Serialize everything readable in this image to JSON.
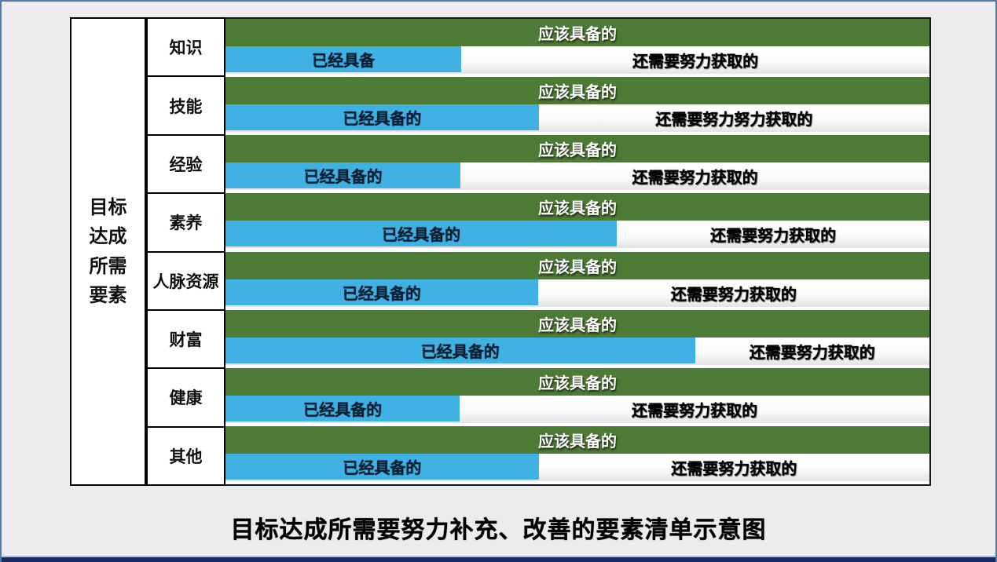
{
  "colors": {
    "green": "#4D7A34",
    "blue": "#3FB1E3",
    "frame_border": "#4F7CAC",
    "bottom_bar": "#182A5E",
    "bottom_line": "#AEBAD6",
    "background": "#ECECEC"
  },
  "header": {
    "title": "目标达成所需要素",
    "lines": [
      "目标",
      "达成",
      "所需",
      "要素"
    ]
  },
  "rows": [
    {
      "label": "知识",
      "should": "应该具备的",
      "have": "已经具备",
      "need": "还需要努力获取的",
      "blue_pct": 33.5
    },
    {
      "label": "技能",
      "should": "应该具备的",
      "have": "已经具备的",
      "need": "还需要努力努力获取的",
      "blue_pct": 44.5
    },
    {
      "label": "经验",
      "should": "应该具备的",
      "have": "已经具备的",
      "need": "还需要努力获取的",
      "blue_pct": 33.4
    },
    {
      "label": "素养",
      "should": "应该具备的",
      "have": "已经具备的",
      "need": "还需要努力获取的",
      "blue_pct": 55.6
    },
    {
      "label": "人脉资源",
      "should": "应该具备的",
      "have": "已经具备的",
      "need": "还需要努力获取的",
      "blue_pct": 44.4
    },
    {
      "label": "财富",
      "should": "应该具备的",
      "have": "已经具备的",
      "need": "还需要努力获取的",
      "blue_pct": 66.7
    },
    {
      "label": "健康",
      "should": "应该具备的",
      "have": "已经具备的",
      "need": "还需要努力获取的",
      "blue_pct": 33.3
    },
    {
      "label": "其他",
      "should": "应该具备的",
      "have": "已经具备的",
      "need": "还需要努力获取的",
      "blue_pct": 44.5
    }
  ],
  "caption": "目标达成所需要努力补充、改善的要素清单示意图",
  "chart_data": {
    "type": "bar",
    "orientation": "horizontal-stacked",
    "title": "目标达成所需要努力补充、改善的要素清单示意图",
    "axis_group_label": "目标达成所需要素",
    "categories": [
      "知识",
      "技能",
      "经验",
      "素养",
      "人脉资源",
      "财富",
      "健康",
      "其他"
    ],
    "full_bar_label": "应该具备的",
    "series": [
      {
        "name": "已经具备的",
        "values_pct": [
          33.5,
          44.5,
          33.4,
          55.6,
          44.4,
          66.7,
          33.3,
          44.5
        ]
      },
      {
        "name": "还需要努力获取的",
        "values_pct": [
          66.5,
          55.5,
          66.6,
          44.4,
          55.6,
          33.3,
          66.7,
          55.5
        ]
      }
    ],
    "xlim": [
      0,
      100
    ],
    "grid": false,
    "legend": "none",
    "notes": "每个类别上方为满宽绿色条(应该具备的)，下方为蓝色(已经具备)与白色(还需要努力获取的)的比例条"
  }
}
